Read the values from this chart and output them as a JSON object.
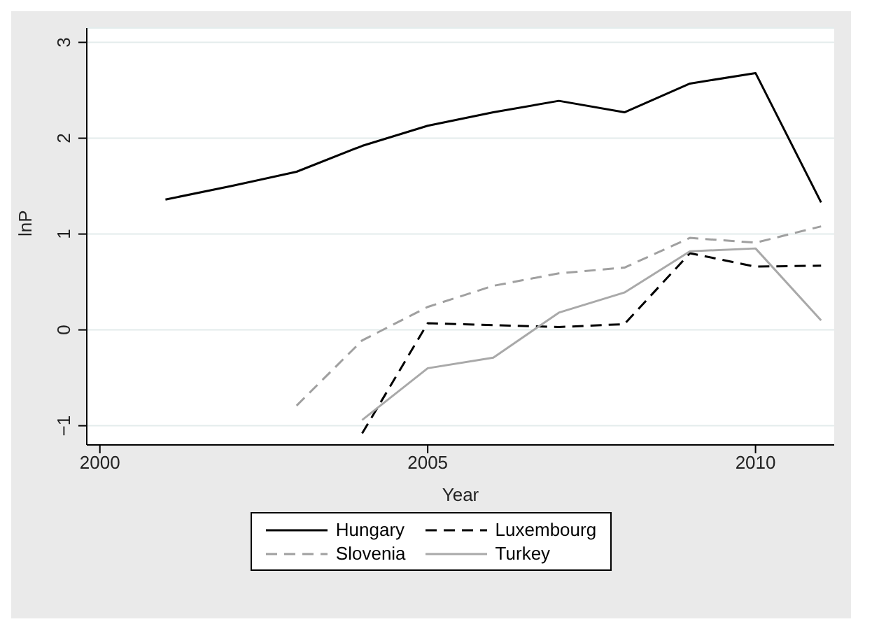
{
  "chart_data": {
    "type": "line",
    "xlabel": "Year",
    "ylabel": "lnP",
    "x": [
      2001,
      2002,
      2003,
      2004,
      2005,
      2006,
      2007,
      2008,
      2009,
      2010,
      2011
    ],
    "series": [
      {
        "name": "Hungary",
        "color": "#000000",
        "line_style": "solid",
        "values": [
          1.36,
          1.5,
          1.65,
          1.92,
          2.13,
          2.27,
          2.39,
          2.27,
          2.57,
          2.68,
          1.33
        ]
      },
      {
        "name": "Luxembourg",
        "color": "#000000",
        "line_style": "dashed",
        "values": [
          null,
          null,
          null,
          -1.08,
          0.07,
          0.05,
          0.03,
          0.06,
          0.8,
          0.66,
          0.67
        ]
      },
      {
        "name": "Slovenia",
        "color": "#a0a0a0",
        "line_style": "dashed",
        "values": [
          null,
          null,
          -0.79,
          -0.11,
          0.24,
          0.46,
          0.59,
          0.65,
          0.96,
          0.91,
          1.08
        ]
      },
      {
        "name": "Turkey",
        "color": "#a9a9a9",
        "line_style": "solid",
        "values": [
          null,
          null,
          null,
          -0.94,
          -0.4,
          -0.29,
          0.18,
          0.39,
          0.82,
          0.85,
          0.1
        ]
      }
    ],
    "xlim": [
      1999.8,
      2011.2
    ],
    "xticks": [
      2000,
      2005,
      2010
    ],
    "ylim": [
      -1.2,
      3.15
    ],
    "yticks": [
      -1,
      0,
      1,
      2,
      3
    ],
    "grid": "y",
    "legend": "bottom",
    "marker": "none"
  }
}
